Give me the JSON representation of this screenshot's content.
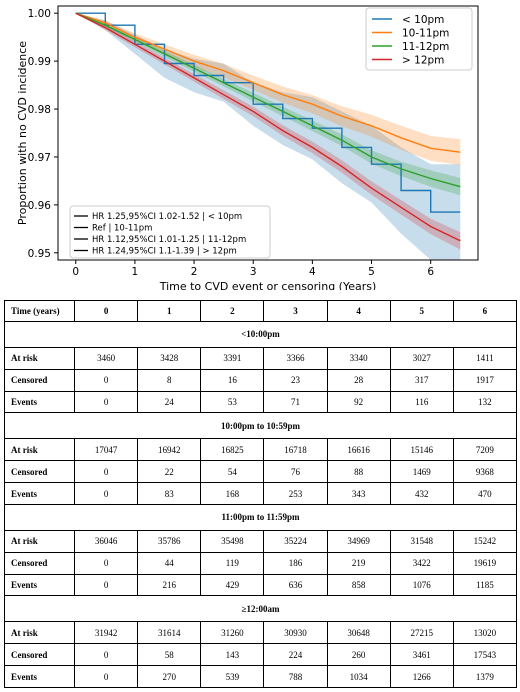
{
  "chart_data": {
    "type": "line",
    "xlabel": "Time to CVD event or censoring (Years)",
    "ylabel": "Proportion with no CVD incidence",
    "xlim": [
      -0.3,
      6.8
    ],
    "ylim": [
      0.9485,
      1.0015
    ],
    "xticks": [
      0,
      1,
      2,
      3,
      4,
      5,
      6
    ],
    "yticks": [
      0.95,
      0.96,
      0.97,
      0.98,
      0.99,
      1.0
    ],
    "ytick_labels": [
      "0.95",
      "0.96",
      "0.97",
      "0.98",
      "0.99",
      "1.00"
    ],
    "legend_position": "top-right",
    "series": [
      {
        "name": "< 10pm",
        "color": "#1f77b4",
        "x": [
          0,
          0.5,
          1,
          1.5,
          2,
          2.5,
          3,
          3.5,
          4,
          4.5,
          5,
          5.5,
          6,
          6.5
        ],
        "y": [
          1.0,
          0.9975,
          0.9935,
          0.9895,
          0.987,
          0.9855,
          0.981,
          0.978,
          0.976,
          0.972,
          0.9685,
          0.963,
          0.9585,
          0.9585
        ],
        "ci_lower": [
          1.0,
          0.9965,
          0.9915,
          0.9865,
          0.9835,
          0.9815,
          0.9765,
          0.9725,
          0.9695,
          0.9645,
          0.9605,
          0.954,
          0.9485,
          0.9485
        ],
        "ci_upper": [
          1.0,
          0.9985,
          0.9955,
          0.9925,
          0.9905,
          0.9895,
          0.9855,
          0.9835,
          0.9825,
          0.9795,
          0.9765,
          0.972,
          0.9685,
          0.9685
        ]
      },
      {
        "name": "10-11pm",
        "color": "#ff7f0e",
        "x": [
          0,
          0.5,
          1,
          1.5,
          2,
          2.5,
          3,
          3.5,
          4,
          4.5,
          5,
          5.5,
          6,
          6.5
        ],
        "y": [
          1.0,
          0.998,
          0.995,
          0.9925,
          0.99,
          0.988,
          0.9855,
          0.983,
          0.981,
          0.9785,
          0.9765,
          0.974,
          0.9718,
          0.971
        ],
        "ci_lower": [
          1.0,
          0.9975,
          0.9942,
          0.9915,
          0.9887,
          0.9866,
          0.984,
          0.9813,
          0.9791,
          0.9764,
          0.9742,
          0.9715,
          0.9692,
          0.9683
        ],
        "ci_upper": [
          1.0,
          0.9985,
          0.9958,
          0.9935,
          0.9913,
          0.9894,
          0.987,
          0.9847,
          0.9829,
          0.9806,
          0.9788,
          0.9765,
          0.9744,
          0.9737
        ]
      },
      {
        "name": "11-12pm",
        "color": "#2ca02c",
        "x": [
          0,
          0.5,
          1,
          1.5,
          2,
          2.5,
          3,
          3.5,
          4,
          4.5,
          5,
          5.5,
          6,
          6.5
        ],
        "y": [
          1.0,
          0.9975,
          0.9945,
          0.9915,
          0.9885,
          0.9855,
          0.9825,
          0.9795,
          0.9765,
          0.9735,
          0.97,
          0.9675,
          0.9655,
          0.9638
        ],
        "ci_lower": [
          1.0,
          0.9971,
          0.994,
          0.9909,
          0.9878,
          0.9847,
          0.9816,
          0.9785,
          0.9754,
          0.9723,
          0.9686,
          0.966,
          0.9638,
          0.962
        ],
        "ci_upper": [
          1.0,
          0.9979,
          0.995,
          0.9921,
          0.9892,
          0.9863,
          0.9834,
          0.9805,
          0.9776,
          0.9747,
          0.9714,
          0.969,
          0.9672,
          0.9656
        ]
      },
      {
        "name": "> 12pm",
        "color": "#d62728",
        "x": [
          0,
          0.5,
          1,
          1.5,
          2,
          2.5,
          3,
          3.5,
          4,
          4.5,
          5,
          5.5,
          6,
          6.5
        ],
        "y": [
          1.0,
          0.997,
          0.9935,
          0.99,
          0.9865,
          0.983,
          0.9795,
          0.9755,
          0.972,
          0.968,
          0.9635,
          0.9595,
          0.9555,
          0.9525
        ],
        "ci_lower": [
          1.0,
          0.9965,
          0.9929,
          0.9893,
          0.9857,
          0.9821,
          0.9785,
          0.9744,
          0.9708,
          0.9667,
          0.9621,
          0.958,
          0.9539,
          0.9507
        ],
        "ci_upper": [
          1.0,
          0.9975,
          0.9941,
          0.9907,
          0.9873,
          0.9839,
          0.9805,
          0.9766,
          0.9732,
          0.9693,
          0.9649,
          0.961,
          0.9571,
          0.9543
        ]
      }
    ],
    "hr_annotations": [
      "HR 1.25,95%CI 1.02-1.52 | < 10pm",
      "Ref                              | 10-11pm",
      "HR 1.12,95%CI 1.01-1.25 | 11-12pm",
      "HR 1.24,95%CI 1.1-1.39 | > 12pm"
    ]
  },
  "table": {
    "header_label": "Time (years)",
    "time_points": [
      "0",
      "1",
      "2",
      "3",
      "4",
      "5",
      "6"
    ],
    "sections": [
      {
        "title": "<10:00pm",
        "rows": [
          {
            "label": "At risk",
            "values": [
              "3460",
              "3428",
              "3391",
              "3366",
              "3340",
              "3027",
              "1411"
            ]
          },
          {
            "label": "Censored",
            "values": [
              "0",
              "8",
              "16",
              "23",
              "28",
              "317",
              "1917"
            ]
          },
          {
            "label": "Events",
            "values": [
              "0",
              "24",
              "53",
              "71",
              "92",
              "116",
              "132"
            ]
          }
        ]
      },
      {
        "title": "10:00pm to 10:59pm",
        "rows": [
          {
            "label": "At risk",
            "values": [
              "17047",
              "16942",
              "16825",
              "16718",
              "16616",
              "15146",
              "7209"
            ]
          },
          {
            "label": "Censored",
            "values": [
              "0",
              "22",
              "54",
              "76",
              "88",
              "1469",
              "9368"
            ]
          },
          {
            "label": "Events",
            "values": [
              "0",
              "83",
              "168",
              "253",
              "343",
              "432",
              "470"
            ]
          }
        ]
      },
      {
        "title": "11:00pm to 11:59pm",
        "rows": [
          {
            "label": "At risk",
            "values": [
              "36046",
              "35786",
              "35498",
              "35224",
              "34969",
              "31548",
              "15242"
            ]
          },
          {
            "label": "Censored",
            "values": [
              "0",
              "44",
              "119",
              "186",
              "219",
              "3422",
              "19619"
            ]
          },
          {
            "label": "Events",
            "values": [
              "0",
              "216",
              "429",
              "636",
              "858",
              "1076",
              "1185"
            ]
          }
        ]
      },
      {
        "title": "≥12:00am",
        "rows": [
          {
            "label": "At risk",
            "values": [
              "31942",
              "31614",
              "31260",
              "30930",
              "30648",
              "27215",
              "13020"
            ]
          },
          {
            "label": "Censored",
            "values": [
              "0",
              "58",
              "143",
              "224",
              "260",
              "3461",
              "17543"
            ]
          },
          {
            "label": "Events",
            "values": [
              "0",
              "270",
              "539",
              "788",
              "1034",
              "1266",
              "1379"
            ]
          }
        ]
      }
    ]
  }
}
